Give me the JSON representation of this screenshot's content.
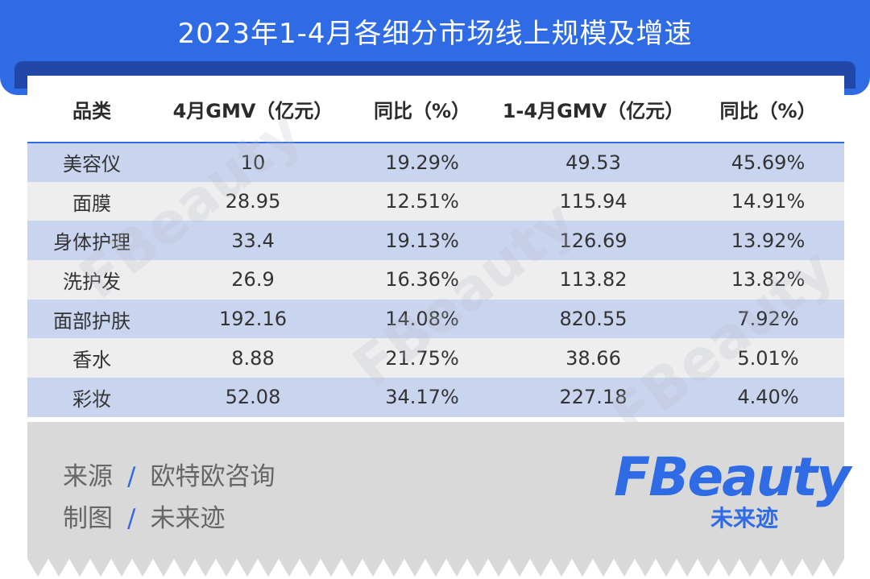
{
  "header": {
    "title": "2023年1-4月各细分市场线上规模及增速"
  },
  "table": {
    "columns": [
      "品类",
      "4月GMV（亿元）",
      "同比（%）",
      "1-4月GMV（亿元）",
      "同比（%）"
    ],
    "rows": [
      [
        "美容仪",
        "10",
        "19.29%",
        "49.53",
        "45.69%"
      ],
      [
        "面膜",
        "28.95",
        "12.51%",
        "115.94",
        "14.91%"
      ],
      [
        "身体护理",
        "33.4",
        "19.13%",
        "126.69",
        "13.92%"
      ],
      [
        "洗护发",
        "26.9",
        "16.36%",
        "113.82",
        "13.82%"
      ],
      [
        "面部护肤",
        "192.16",
        "14.08%",
        "820.55",
        "7.92%"
      ],
      [
        "香水",
        "8.88",
        "21.75%",
        "38.66",
        "5.01%"
      ],
      [
        "彩妆",
        "52.08",
        "34.17%",
        "227.18",
        "4.40%"
      ]
    ]
  },
  "footer": {
    "source_label": "来源",
    "source_value": "欧特欧咨询",
    "maker_label": "制图",
    "maker_value": "未来迹",
    "separator": "/"
  },
  "logo": {
    "main": "FBeauty",
    "sub": "未来迹"
  },
  "colors": {
    "accent": "#2f6be4",
    "row_blue": "#c9d4ee",
    "row_gray": "#eeeeee",
    "footer_bg": "#d9d9d9"
  }
}
